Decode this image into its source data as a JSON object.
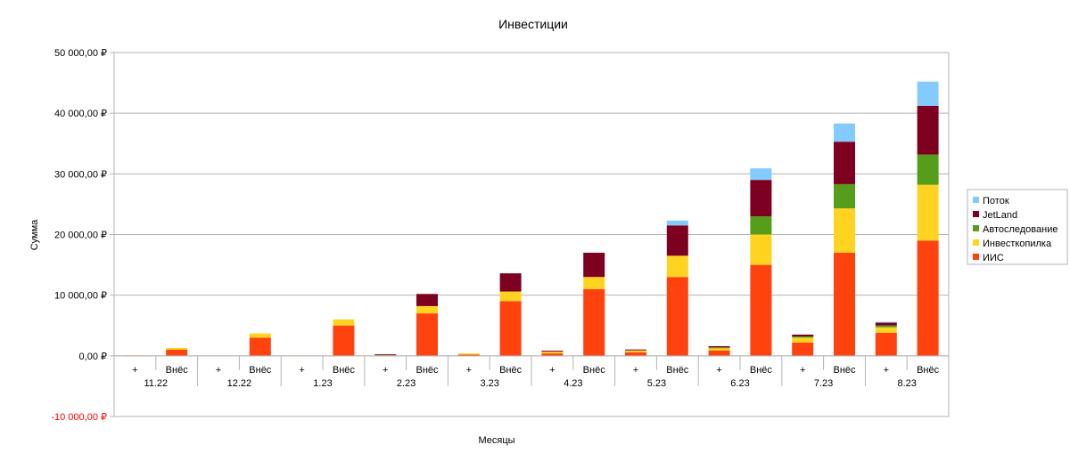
{
  "chart_data": {
    "type": "bar",
    "stacked": true,
    "title": "Инвестиции",
    "xlabel": "Месяцы",
    "ylabel": "Сумма",
    "ylim": [
      -10000,
      50000
    ],
    "y_ticks": [
      {
        "value": 50000,
        "label": "50 000,00 ₽"
      },
      {
        "value": 40000,
        "label": "40 000,00 ₽"
      },
      {
        "value": 30000,
        "label": "30 000,00 ₽"
      },
      {
        "value": 20000,
        "label": "20 000,00 ₽"
      },
      {
        "value": 10000,
        "label": "10 000,00 ₽"
      },
      {
        "value": 0,
        "label": "0,00 ₽"
      },
      {
        "value": -10000,
        "label": "-10 000,00 ₽"
      }
    ],
    "negative_label_color": "#ff0000",
    "grid": true,
    "legend_position": "right",
    "months": [
      "11.22",
      "12.22",
      "1.23",
      "2.23",
      "3.23",
      "4.23",
      "5.23",
      "6.23",
      "7.23",
      "8.23"
    ],
    "sub_categories": [
      "+",
      "Внёс"
    ],
    "series": [
      {
        "name": "ИИС",
        "color": "#ff420e",
        "values": [
          50,
          1000,
          0,
          3000,
          0,
          5000,
          100,
          7000,
          200,
          9000,
          400,
          11000,
          600,
          13000,
          900,
          15000,
          2200,
          17000,
          3800,
          19000
        ]
      },
      {
        "name": "Инвесткопилка",
        "color": "#ffd320",
        "values": [
          30,
          300,
          0,
          700,
          50,
          1000,
          50,
          1200,
          200,
          1600,
          300,
          2000,
          300,
          3500,
          400,
          5000,
          800,
          7300,
          900,
          9200
        ]
      },
      {
        "name": "Автоследование",
        "color": "#579d1c",
        "values": [
          0,
          0,
          0,
          0,
          0,
          0,
          0,
          0,
          0,
          0,
          0,
          0,
          0,
          0,
          100,
          3000,
          200,
          4000,
          300,
          5000
        ]
      },
      {
        "name": "JetLand",
        "color": "#7e0021",
        "values": [
          0,
          0,
          0,
          0,
          0,
          0,
          100,
          2000,
          0,
          3000,
          150,
          4000,
          150,
          5000,
          200,
          6000,
          300,
          7000,
          500,
          8000
        ]
      },
      {
        "name": "Поток",
        "color": "#83caff",
        "values": [
          0,
          0,
          0,
          0,
          0,
          0,
          0,
          0,
          0,
          0,
          0,
          0,
          0,
          800,
          0,
          1900,
          0,
          3000,
          100,
          4000
        ]
      }
    ]
  }
}
